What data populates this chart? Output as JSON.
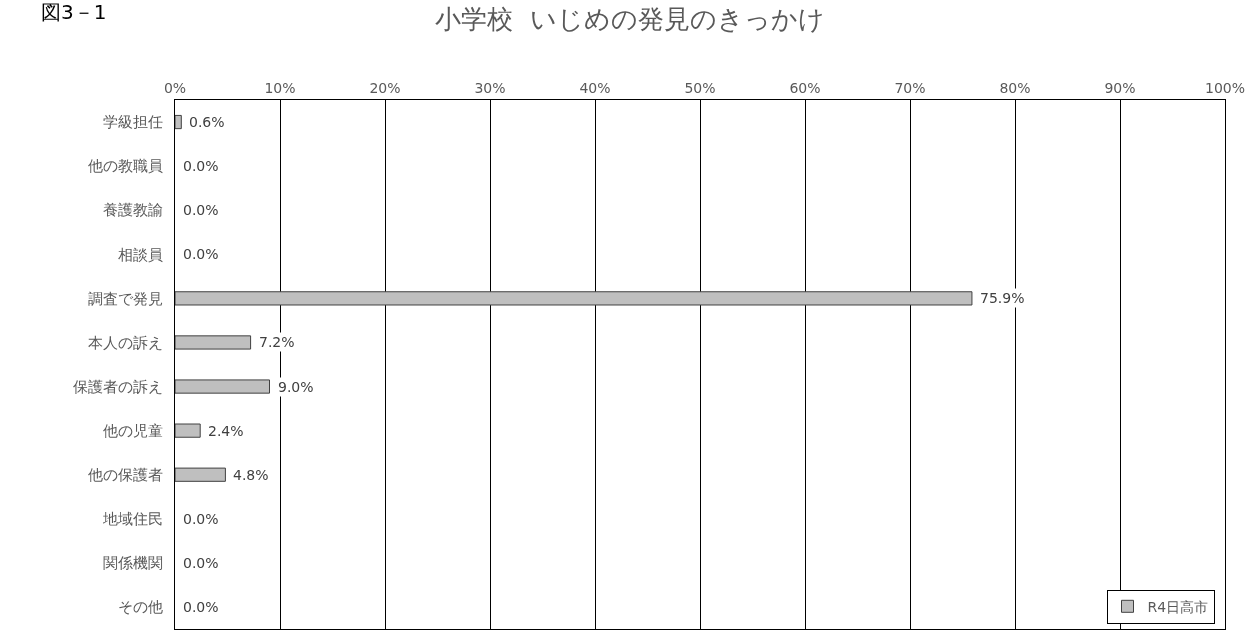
{
  "chart_data": {
    "type": "bar",
    "orientation": "horizontal",
    "title": "小学校  いじめの発見のきっかけ",
    "annotations": [
      "図3－1"
    ],
    "categories": [
      "学級担任",
      "他の教職員",
      "養護教諭",
      "相談員",
      "調査で発見",
      "本人の訴え",
      "保護者の訴え",
      "他の児童",
      "他の保護者",
      "地域住民",
      "関係機関",
      "その他"
    ],
    "series": [
      {
        "name": "R4日高市",
        "color": "#bfbfbf",
        "values": [
          0.6,
          0.0,
          0.0,
          0.0,
          75.9,
          7.2,
          9.0,
          2.4,
          4.8,
          0.0,
          0.0,
          0.0
        ],
        "value_labels": [
          "0.6%",
          "0.0%",
          "0.0%",
          "0.0%",
          "75.9%",
          "7.2%",
          "9.0%",
          "2.4%",
          "4.8%",
          "0.0%",
          "0.0%",
          "0.0%"
        ]
      }
    ],
    "xlim": [
      0,
      100
    ],
    "xticks": [
      {
        "value": 0,
        "label": "0%"
      },
      {
        "value": 10,
        "label": "10%"
      },
      {
        "value": 20,
        "label": "20%"
      },
      {
        "value": 30,
        "label": "30%"
      },
      {
        "value": 40,
        "label": "40%"
      },
      {
        "value": 50,
        "label": "50%"
      },
      {
        "value": 60,
        "label": "60%"
      },
      {
        "value": 70,
        "label": "70%"
      },
      {
        "value": 80,
        "label": "80%"
      },
      {
        "value": 90,
        "label": "90%"
      },
      {
        "value": 100,
        "label": "100%"
      }
    ],
    "grid": "x",
    "legend": "bottom right"
  }
}
